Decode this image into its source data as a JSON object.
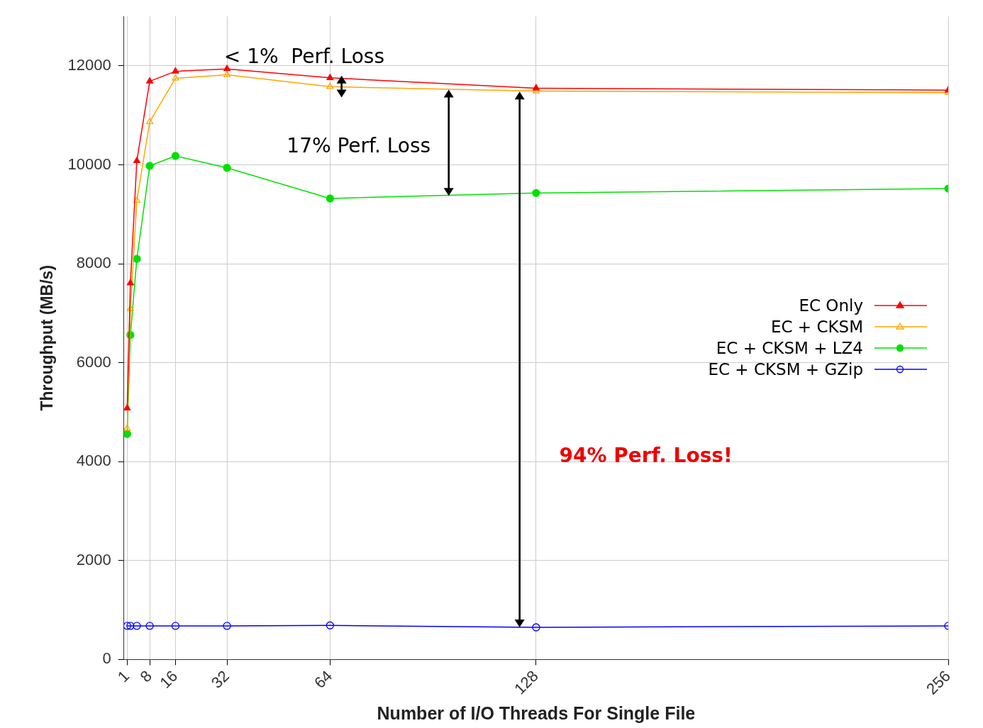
{
  "chart_data": {
    "type": "line",
    "xlabel": "Number of I/O Threads For Single File",
    "ylabel": "Throughput (MB/s)",
    "x": [
      1,
      2,
      4,
      8,
      16,
      32,
      64,
      128,
      256
    ],
    "series": [
      {
        "name": "EC Only",
        "color": "#ff0000",
        "marker": "triangle",
        "values": [
          5080,
          7610,
          10080,
          11690,
          11890,
          11940,
          11760,
          11550,
          11510
        ]
      },
      {
        "name": "EC + CKSM",
        "color": "#ffa500",
        "marker": "triangle",
        "values": [
          4670,
          7090,
          9280,
          10870,
          11750,
          11820,
          11580,
          11490,
          11460
        ]
      },
      {
        "name": "EC + CKSM + LZ4",
        "color": "#00e000",
        "marker": "circle",
        "values": [
          4560,
          6560,
          8100,
          9980,
          10180,
          9940,
          9320,
          9430,
          9520
        ]
      },
      {
        "name": "EC + CKSM + GZip",
        "color": "#0000ff",
        "marker": "circle",
        "values": [
          680,
          680,
          680,
          680,
          680,
          680,
          690,
          650,
          680
        ]
      }
    ],
    "xlim": [
      0,
      256
    ],
    "xticks": [
      1,
      8,
      16,
      32,
      64,
      128,
      256
    ],
    "ylim": [
      0,
      13000
    ],
    "yticks": [
      0,
      2000,
      4000,
      6000,
      8000,
      10000,
      12000
    ],
    "grid": true,
    "legend": "right",
    "line_style": "solid",
    "annotations": [
      "< 1%  Perf. Loss",
      "17% Perf. Loss",
      "94% Perf. Loss!"
    ]
  }
}
